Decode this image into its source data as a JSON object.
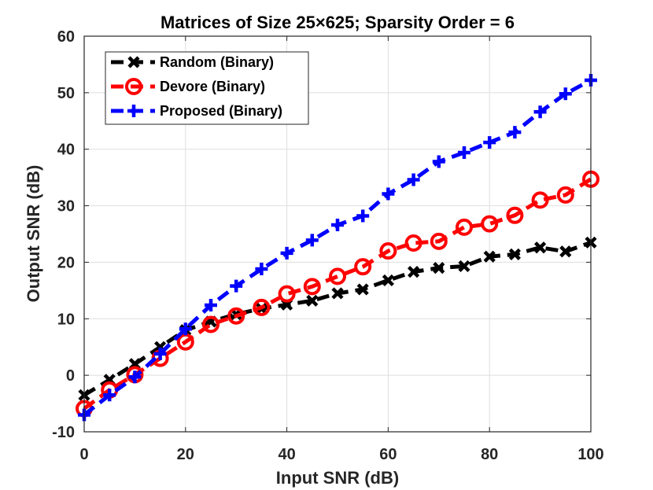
{
  "chart_data": {
    "type": "line",
    "title": "Matrices of Size 25×625; Sparsity Order = 6",
    "xlabel": "Input SNR (dB)",
    "ylabel": "Output SNR (dB)",
    "xlim": [
      0,
      100
    ],
    "ylim": [
      -10,
      60
    ],
    "xticks": [
      0,
      20,
      40,
      60,
      80,
      100
    ],
    "yticks": [
      -10,
      0,
      10,
      20,
      30,
      40,
      50,
      60
    ],
    "grid": true,
    "legend_position": "top-left",
    "x": [
      0,
      5,
      10,
      15,
      20,
      25,
      30,
      35,
      40,
      45,
      50,
      55,
      60,
      65,
      70,
      75,
      80,
      85,
      90,
      95,
      100
    ],
    "series": [
      {
        "name": "Random (Binary)",
        "color": "#000000",
        "marker": "x",
        "values": [
          -3.5,
          -0.8,
          2.0,
          5.0,
          8.0,
          9.5,
          10.8,
          11.8,
          12.5,
          13.2,
          14.5,
          15.2,
          16.8,
          18.3,
          19.0,
          19.3,
          21.0,
          21.4,
          22.6,
          21.9,
          23.5
        ]
      },
      {
        "name": "Devore (Binary)",
        "color": "#ff0000",
        "marker": "o",
        "values": [
          -5.9,
          -2.6,
          0.1,
          3.0,
          5.9,
          9.0,
          10.5,
          12.0,
          14.4,
          15.7,
          17.5,
          19.2,
          22.0,
          23.4,
          23.7,
          26.2,
          26.8,
          28.3,
          31.0,
          31.9,
          34.7
        ]
      },
      {
        "name": "Proposed (Binary)",
        "color": "#0000ff",
        "marker": "+",
        "values": [
          -7.0,
          -3.5,
          -0.3,
          3.8,
          8.2,
          12.4,
          15.8,
          18.8,
          21.6,
          23.9,
          26.6,
          28.2,
          32.1,
          34.6,
          37.8,
          39.4,
          41.2,
          43.0,
          46.6,
          49.8,
          52.2
        ]
      }
    ]
  }
}
